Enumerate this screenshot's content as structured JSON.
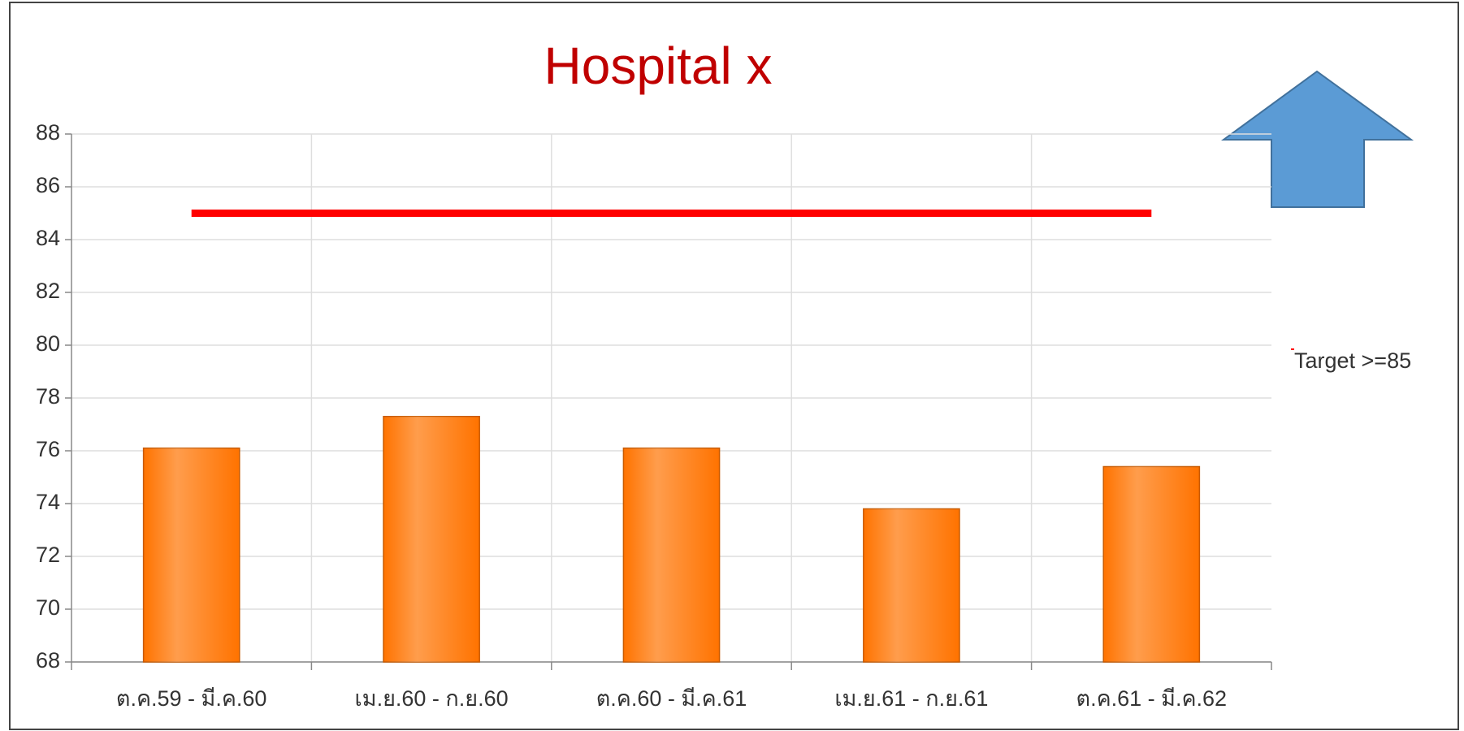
{
  "chart_data": {
    "type": "bar",
    "title": "Hospital x",
    "categories": [
      "ต.ค.59 - มี.ค.60",
      "เม.ย.60 - ก.ย.60",
      "ต.ค.60 - มี.ค.61",
      "เม.ย.61 - ก.ย.61",
      "ต.ค.61 - มี.ค.62"
    ],
    "series": [
      {
        "type": "bar",
        "color": "#ff7300",
        "values": [
          76.1,
          77.3,
          76.1,
          73.8,
          75.4
        ]
      },
      {
        "type": "line",
        "name": "Target >=85",
        "color": "#ff0000",
        "values": [
          85,
          85,
          85,
          85,
          85
        ]
      }
    ],
    "ylim": [
      68,
      88
    ],
    "yticks": [
      68,
      70,
      72,
      74,
      76,
      78,
      80,
      82,
      84,
      86,
      88
    ],
    "grid": true,
    "legend": "right"
  }
}
